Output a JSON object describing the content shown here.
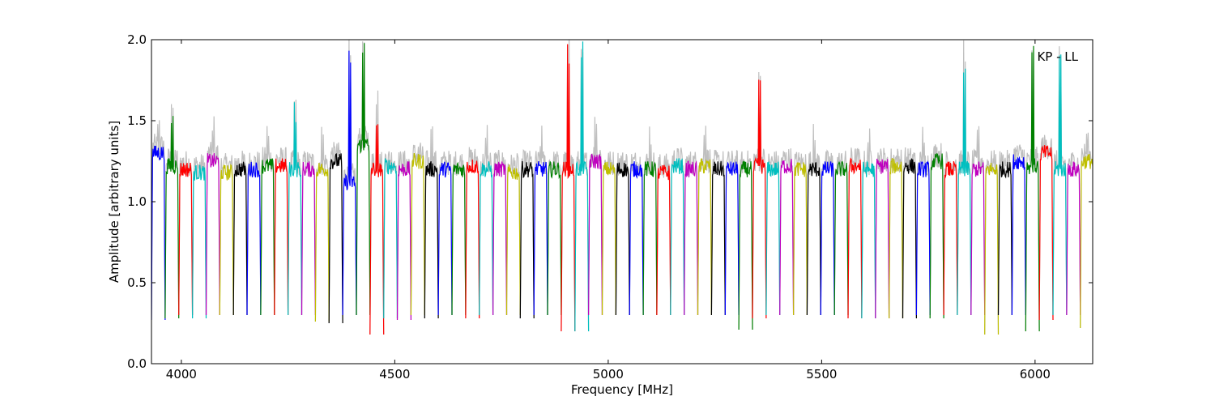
{
  "chart_data": {
    "type": "line",
    "title": "",
    "annotation": "KP - LL",
    "xlabel": "Frequency [MHz]",
    "ylabel": "Amplitude [arbitrary units]",
    "xlim": [
      3930,
      6135
    ],
    "ylim": [
      0.0,
      2.0
    ],
    "xticks": [
      4000,
      4500,
      5000,
      5500,
      6000
    ],
    "xtick_labels": [
      "4000",
      "4500",
      "5000",
      "5500",
      "6000"
    ],
    "yticks": [
      0.0,
      0.5,
      1.0,
      1.5,
      2.0
    ],
    "ytick_labels": [
      "0.0",
      "0.5",
      "1.0",
      "1.5",
      "2.0"
    ],
    "grid": false,
    "legend": "none",
    "background_series": {
      "color": "#bfbfbf",
      "description_hidden": true
    },
    "channel_width_mhz": 32,
    "channel_start_mhz": 3930,
    "channel_colors": [
      "#0000ff",
      "#008000",
      "#ff0000",
      "#00bfbf",
      "#bf00bf",
      "#bfbf00",
      "#000000"
    ],
    "channel_levels": [
      1.3,
      1.22,
      1.2,
      1.18,
      1.25,
      1.18,
      1.2,
      1.2,
      1.22,
      1.22,
      1.2,
      1.2,
      1.2,
      1.25,
      1.12,
      1.35,
      1.2,
      1.22,
      1.2,
      1.25,
      1.2,
      1.2,
      1.2,
      1.22,
      1.2,
      1.2,
      1.18,
      1.2,
      1.2,
      1.2,
      1.2,
      1.2,
      1.25,
      1.2,
      1.2,
      1.2,
      1.2,
      1.18,
      1.22,
      1.2,
      1.22,
      1.2,
      1.2,
      1.2,
      1.22,
      1.2,
      1.22,
      1.2,
      1.2,
      1.2,
      1.2,
      1.22,
      1.2,
      1.22,
      1.22,
      1.22,
      1.2,
      1.25,
      1.2,
      1.2,
      1.2,
      1.2,
      1.2,
      1.25,
      1.22,
      1.3,
      1.2,
      1.2,
      1.25
    ],
    "channel_dips": [
      0.27,
      0.28,
      0.3,
      0.28,
      0.3,
      0.3,
      0.3,
      0.3,
      0.3,
      0.3,
      0.3,
      0.3,
      0.26,
      0.25,
      0.3,
      0.3,
      0.18,
      0.28,
      0.27,
      0.3,
      0.28,
      0.3,
      0.3,
      0.28,
      0.3,
      0.3,
      0.3,
      0.28,
      0.3,
      0.3,
      0.2,
      0.2,
      0.3,
      0.3,
      0.3,
      0.3,
      0.3,
      0.3,
      0.3,
      0.3,
      0.3,
      0.3,
      0.3,
      0.21,
      0.28,
      0.3,
      0.3,
      0.3,
      0.3,
      0.3,
      0.3,
      0.28,
      0.28,
      0.28,
      0.28,
      0.28,
      0.3,
      0.28,
      0.3,
      0.3,
      0.3,
      0.18,
      0.3,
      0.3,
      0.2,
      0.27,
      0.3,
      0.3,
      0.22
    ],
    "channel_spikes": [
      {
        "channel": 1,
        "peak": 1.55
      },
      {
        "channel": 10,
        "peak": 1.62
      },
      {
        "channel": 14,
        "peak": 2.0
      },
      {
        "channel": 15,
        "peak": 2.0
      },
      {
        "channel": 16,
        "peak": 1.6
      },
      {
        "channel": 30,
        "peak": 2.0
      },
      {
        "channel": 31,
        "peak": 2.0
      },
      {
        "channel": 44,
        "peak": 1.8
      },
      {
        "channel": 59,
        "peak": 1.9
      },
      {
        "channel": 64,
        "peak": 2.0
      },
      {
        "channel": 66,
        "peak": 2.0
      }
    ]
  }
}
